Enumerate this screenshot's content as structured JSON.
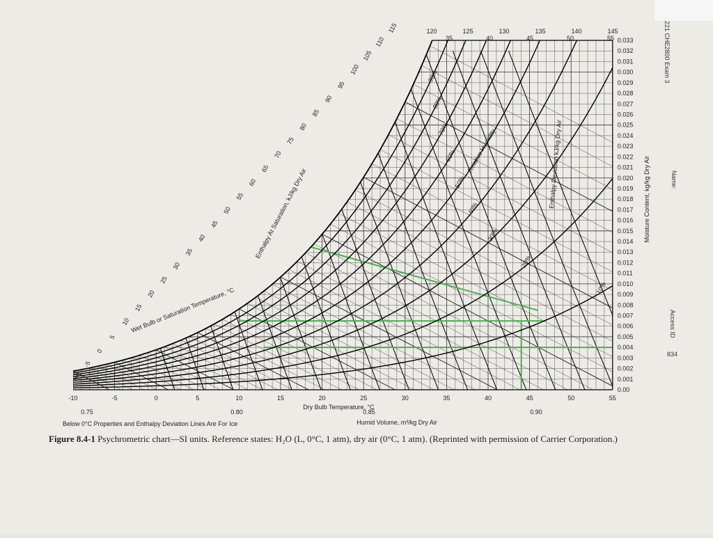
{
  "chart": {
    "enthalpy_top": [
      "120",
      "125",
      "130",
      "135",
      "140",
      "145"
    ],
    "sat_top": [
      "35",
      "40",
      "45",
      "50",
      "55"
    ],
    "enthalpy_left": [
      "-10",
      "-5",
      "0",
      "5",
      "10",
      "15",
      "20",
      "25",
      "30",
      "35",
      "40",
      "45",
      "50",
      "55",
      "60",
      "65",
      "70",
      "75",
      "80",
      "85",
      "90",
      "95",
      "100",
      "105",
      "110",
      "115"
    ],
    "enthalpy_sat_label": "Enthalpy At Saturation, kJ/kg Dry Air",
    "wet_bulb_label": "Wet Bulb or Saturation Temperature, °C",
    "rh": [
      "90%",
      "80%",
      "70%",
      "60%",
      "50%",
      "40%",
      "30%",
      "20%",
      "10%"
    ],
    "rh_title": "Relative Humidity",
    "deviation_label": "Enthalpy Deviation kJ/kg Dry Air",
    "dry_bulb_ticks": [
      -10,
      -5,
      0,
      5,
      10,
      15,
      20,
      25,
      30,
      35,
      40,
      45,
      50,
      55
    ],
    "dry_bulb_label": "Dry Bulb Temperature, °C",
    "moisture_ticks": [
      "0.00",
      "0.001",
      "0.002",
      "0.003",
      "0.004",
      "0.005",
      "0.006",
      "0.007",
      "0.008",
      "0.009",
      "0.010",
      "0.011",
      "0.012",
      "0.013",
      "0.014",
      "0.015",
      "0.016",
      "0.017",
      "0.018",
      "0.019",
      "0.020",
      "0.021",
      "0.022",
      "0.023",
      "0.024",
      "0.025",
      "0.026",
      "0.027",
      "0.028",
      "0.029",
      "0.030",
      "0.031",
      "0.032",
      "0.033"
    ],
    "moisture_label": "Moisture Content, kg/kg Dry Air",
    "volume_ticks": [
      "0.75",
      "0.80",
      "0.85",
      "0.90"
    ],
    "volume_label": "Humid Volume, m³/kg Dry Air",
    "note": "Below 0°C Properties and Enthalpy Deviation Lines Are For Ice"
  },
  "caption": {
    "label": "Figure 8.4-1",
    "text": "Psychrometric chart—SI units. Reference states: H₂O (L, 0°C, 1 atm), dry air (0°C, 1 atm). (Reprinted with permission of Carrier Corporation.)"
  },
  "handwriting": {
    "course": "221 CHE2800 Exam 3",
    "name": "Name:",
    "access": "Access ID",
    "id": "834"
  }
}
